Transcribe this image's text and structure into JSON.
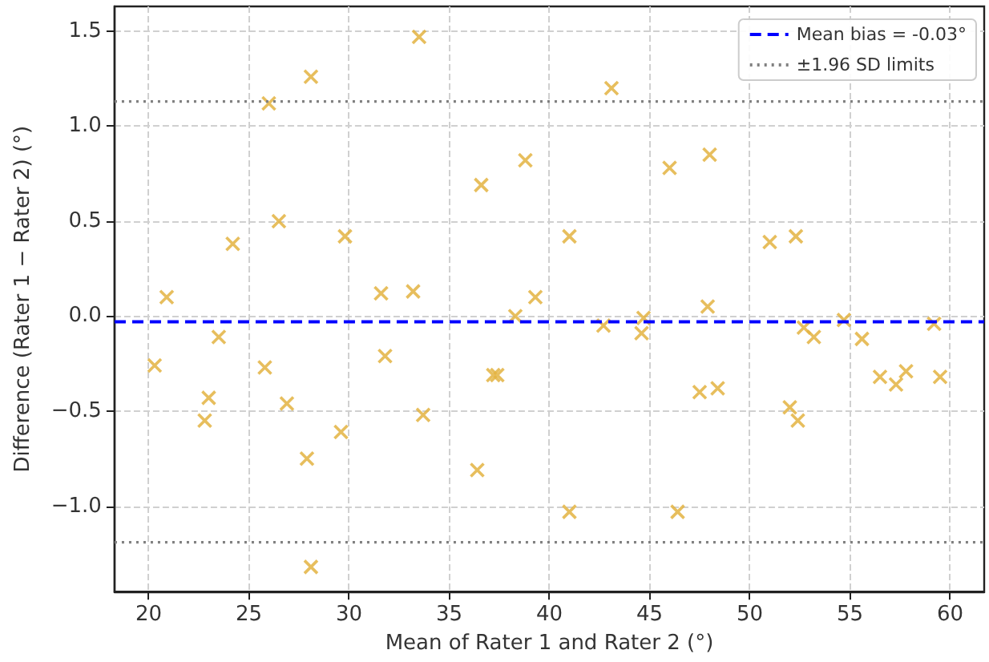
{
  "chart_data": {
    "type": "scatter",
    "xlabel": "Mean of Rater 1 and Rater 2 (°)",
    "ylabel": "Difference (Rater 1 − Rater 2) (°)",
    "x": [
      20.3,
      20.9,
      22.8,
      23.0,
      23.5,
      24.2,
      25.8,
      26.0,
      26.5,
      26.9,
      27.9,
      28.1,
      28.1,
      29.6,
      29.8,
      31.6,
      31.8,
      33.2,
      33.5,
      33.7,
      36.4,
      36.6,
      37.2,
      37.4,
      38.3,
      38.8,
      39.3,
      41.0,
      41.0,
      42.7,
      43.1,
      44.6,
      44.7,
      46.0,
      46.4,
      47.5,
      47.9,
      48.0,
      48.4,
      51.0,
      52.0,
      52.3,
      52.4,
      52.7,
      53.2,
      54.7,
      55.6,
      56.5,
      57.3,
      57.8,
      59.2,
      59.5
    ],
    "series": [
      {
        "color": "#e3b341",
        "values": [
          -0.26,
          0.1,
          -0.55,
          -0.43,
          -0.11,
          0.38,
          -0.27,
          1.12,
          0.5,
          -0.46,
          -0.75,
          1.26,
          -1.32,
          -0.61,
          0.42,
          0.12,
          -0.21,
          0.13,
          1.47,
          -0.52,
          -0.81,
          0.69,
          -0.31,
          -0.31,
          0.0,
          0.82,
          0.1,
          0.42,
          -1.03,
          -0.05,
          1.2,
          -0.09,
          -0.01,
          0.78,
          -1.03,
          -0.4,
          0.05,
          0.85,
          -0.38,
          0.39,
          -0.48,
          0.42,
          -0.55,
          -0.06,
          -0.11,
          -0.02,
          -0.12,
          -0.32,
          -0.36,
          -0.29,
          -0.04,
          -0.32
        ]
      }
    ],
    "marker": "cross",
    "xlim": [
      18.3,
      61.7
    ],
    "xticks": [
      20,
      25,
      30,
      35,
      40,
      45,
      50,
      55,
      60
    ],
    "ylim": [
      -1.45,
      1.63
    ],
    "yticks": [
      {
        "value": -1.0,
        "label": "−1.0"
      },
      {
        "value": -0.5,
        "label": "−0.5"
      },
      {
        "value": 0,
        "label": "0.0"
      },
      {
        "value": 0.5,
        "label": "0.5"
      },
      {
        "value": 1.0,
        "label": "1.0"
      },
      {
        "value": 1.5,
        "label": "1.5"
      }
    ],
    "ref_lines": [
      {
        "axis": "y",
        "value": -0.03,
        "label": "Mean bias = -0.03°",
        "color": "#0000ff",
        "line_style": "dashed"
      },
      {
        "axis": "y",
        "value": 1.13,
        "label": "±1.96 SD limits",
        "color": "#808080",
        "line_style": "dotted"
      },
      {
        "axis": "y",
        "value": -1.19,
        "color": "#808080",
        "line_style": "dotted"
      }
    ],
    "grid": true,
    "legend": "top right"
  }
}
